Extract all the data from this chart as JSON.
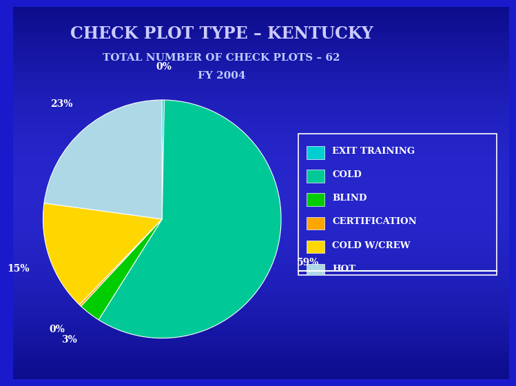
{
  "title": "CHECK PLOT TYPE – KENTUCKY",
  "subtitle1": "TOTAL NUMBER OF CHECK PLOTS – 62",
  "subtitle2": "FY 2004",
  "labels": [
    "EXIT TRAINING",
    "COLD",
    "BLIND",
    "CERTIFICATION",
    "COLD W/CREW",
    "HOT"
  ],
  "values": [
    0.3,
    59,
    3,
    0.3,
    15,
    23
  ],
  "colors": [
    "#00CED1",
    "#00C896",
    "#00CC00",
    "#FFA500",
    "#FFD700",
    "#ADD8E6"
  ],
  "pct_labels": [
    "0%",
    "59%",
    "3%",
    "0%",
    "15%",
    "23%"
  ],
  "title_color": "#CCCCFF",
  "subtitle_color": "#BBCCFF"
}
